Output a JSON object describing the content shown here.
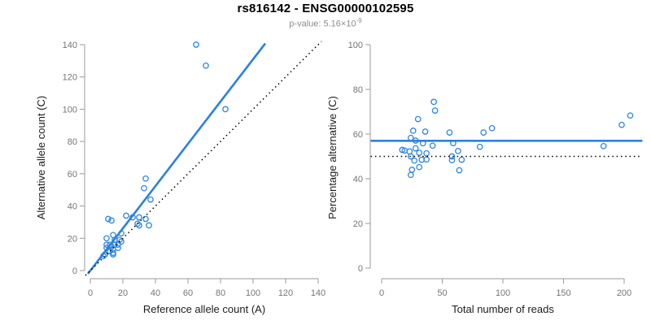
{
  "header": {
    "title": "rs816142 - ENSG00000102595",
    "pvalue_prefix": "p-value: 5.16×10",
    "pvalue_exponent": "-9"
  },
  "colors": {
    "point_blue": "#2e86e0",
    "line_blue": "#2b80e0",
    "dotted_black": "#000000",
    "axis_line_gray": "#9b9b9b",
    "tick_label_gray": "#757575",
    "axis_title_color": "#1c1c1c"
  },
  "chart_data": [
    {
      "type": "scatter",
      "panel": "left",
      "xlabel": "Reference allele count (A)",
      "ylabel": "Alternative allele count (C)",
      "xlim": [
        0,
        140
      ],
      "ylim": [
        0,
        140
      ],
      "xticks": [
        0,
        20,
        40,
        60,
        80,
        100,
        120,
        140
      ],
      "yticks": [
        0,
        20,
        40,
        60,
        80,
        100,
        120,
        140
      ],
      "grid": false,
      "legend": "none",
      "points": [
        [
          65,
          140
        ],
        [
          71,
          127
        ],
        [
          83,
          100
        ],
        [
          34,
          57
        ],
        [
          33,
          51
        ],
        [
          37,
          44
        ],
        [
          22,
          34
        ],
        [
          26,
          33
        ],
        [
          30,
          33
        ],
        [
          36,
          28
        ],
        [
          34,
          32
        ],
        [
          29,
          29
        ],
        [
          30,
          28
        ],
        [
          11,
          32
        ],
        [
          13,
          31
        ],
        [
          14,
          22
        ],
        [
          10,
          20
        ],
        [
          19,
          23
        ],
        [
          18,
          19
        ],
        [
          15,
          19
        ],
        [
          19,
          18
        ],
        [
          10,
          16
        ],
        [
          12,
          16
        ],
        [
          15,
          16
        ],
        [
          17,
          16
        ],
        [
          17,
          14
        ],
        [
          14,
          13
        ],
        [
          11,
          12
        ],
        [
          14,
          11
        ],
        [
          12,
          12
        ],
        [
          14,
          10
        ],
        [
          10,
          14
        ],
        [
          8,
          9
        ],
        [
          9,
          10
        ],
        [
          13,
          15
        ]
      ],
      "lines": [
        {
          "name": "fitted-allelic-ratio-line",
          "style": "solid",
          "color_key": "line_blue",
          "width": 2.6,
          "from": [
            -1.5,
            -2
          ],
          "to": [
            107.5,
            140.8
          ]
        },
        {
          "name": "identity-line",
          "style": "dotted",
          "color_key": "dotted_black",
          "width": 1.5,
          "from": [
            -3,
            -3
          ],
          "to": [
            142,
            142
          ]
        }
      ]
    },
    {
      "type": "scatter",
      "panel": "right",
      "xlabel": "Total number of reads",
      "ylabel": "Percentage alternative (C)",
      "xlim": [
        0,
        200
      ],
      "ylim": [
        0,
        100
      ],
      "xticks": [
        0,
        50,
        100,
        150,
        200
      ],
      "yticks": [
        0,
        20,
        40,
        60,
        80,
        100
      ],
      "grid": false,
      "legend": "none",
      "points": [
        [
          205,
          68.3
        ],
        [
          198,
          64.1
        ],
        [
          183,
          54.6
        ],
        [
          91,
          62.6
        ],
        [
          84,
          60.7
        ],
        [
          81,
          54.3
        ],
        [
          56,
          60.7
        ],
        [
          59,
          55.9
        ],
        [
          63,
          52.4
        ],
        [
          64,
          43.8
        ],
        [
          66,
          48.5
        ],
        [
          58,
          50
        ],
        [
          58,
          48.3
        ],
        [
          43,
          74.4
        ],
        [
          44,
          70.5
        ],
        [
          36,
          61.1
        ],
        [
          30,
          66.7
        ],
        [
          42,
          54.8
        ],
        [
          37,
          51.4
        ],
        [
          34,
          55.9
        ],
        [
          37,
          48.6
        ],
        [
          26,
          61.5
        ],
        [
          28,
          57.1
        ],
        [
          31,
          51.6
        ],
        [
          33,
          48.5
        ],
        [
          31,
          45.2
        ],
        [
          27,
          48.1
        ],
        [
          23,
          52.2
        ],
        [
          25,
          44
        ],
        [
          24,
          50
        ],
        [
          24,
          41.7
        ],
        [
          24,
          58.3
        ],
        [
          17,
          52.9
        ],
        [
          19,
          52.6
        ],
        [
          28,
          53.6
        ]
      ],
      "lines": [
        {
          "name": "mean-percentage-line",
          "style": "solid",
          "color_key": "line_blue",
          "width": 2.6,
          "from": [
            -9,
            57
          ],
          "to": [
            215,
            57
          ]
        },
        {
          "name": "expected-50-percent-line",
          "style": "dotted",
          "color_key": "dotted_black",
          "width": 1.5,
          "from": [
            -9,
            50
          ],
          "to": [
            215,
            50
          ]
        }
      ]
    }
  ]
}
